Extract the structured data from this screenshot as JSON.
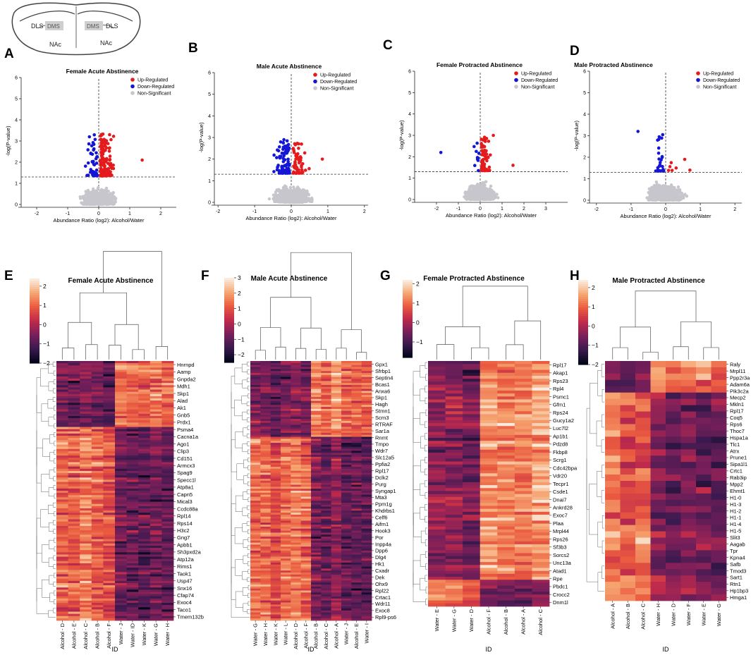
{
  "brain": {
    "labels": [
      "DLS",
      "DMS",
      "DMS",
      "DLS",
      "NAc",
      "NAc"
    ]
  },
  "colors": {
    "up": "#e41a1c",
    "down": "#1515d6",
    "ns": "#c6c6cc",
    "palette": [
      "#03051a",
      "#3c1a4f",
      "#7a1f5a",
      "#c02a4b",
      "#ea5a3f",
      "#f6a571",
      "#faebdd"
    ]
  },
  "volcano_legend": {
    "up": "Up-Regulated",
    "down": "Down-Regulated",
    "ns": "Non-Significant"
  },
  "volcano_ylabel": "-log(P-value)",
  "volcano_xlabel": "Abundance Ratio (log2): Alcohol/Water",
  "heatmap_xlabel": "ID",
  "chart_data": [
    {
      "type": "scatter",
      "panel": "A",
      "title": "Female Acute Abstinence",
      "xlim": [
        -2.5,
        2.5
      ],
      "ylim": [
        0,
        6
      ],
      "xticks": [
        -2,
        -1,
        0,
        1,
        2
      ],
      "yticks": [
        0,
        1,
        2,
        3,
        4,
        5,
        6
      ],
      "xticklabels": [
        "-2",
        "-1",
        "0",
        "1",
        "2"
      ],
      "yticklabels": [
        "0",
        "1",
        "2",
        "3",
        "4",
        "5",
        "6"
      ],
      "threshold": 1.3,
      "n_up": 140,
      "n_down": 45,
      "max_y": 3.4,
      "up_extremes": [
        [
          1.4,
          2.1
        ],
        [
          0.35,
          3.3
        ]
      ],
      "down_extremes": [
        [
          -0.3,
          3.2
        ]
      ]
    },
    {
      "type": "scatter",
      "panel": "B",
      "title": "Male Acute Abstinence",
      "xlim": [
        -2.1,
        2.1
      ],
      "ylim": [
        0,
        6
      ],
      "xticks": [
        -2,
        -1,
        0,
        1,
        2
      ],
      "yticks": [
        0,
        1,
        2,
        3,
        4,
        5,
        6
      ],
      "xticklabels": [
        "-2",
        "-1",
        "0",
        "1",
        "2"
      ],
      "yticklabels": [
        "0",
        "1",
        "2",
        "3",
        "4",
        "5",
        "6"
      ],
      "threshold": 1.3,
      "n_up": 60,
      "n_down": 110,
      "max_y": 2.9,
      "up_extremes": [
        [
          0.85,
          2.0
        ],
        [
          0.2,
          2.5
        ]
      ],
      "down_extremes": [
        [
          -0.2,
          2.9
        ]
      ]
    },
    {
      "type": "scatter",
      "panel": "C",
      "title": "Female Protracted Abstinence",
      "xlim": [
        -3.0,
        4.0
      ],
      "ylim": [
        0,
        6
      ],
      "xticks": [
        -2,
        -1,
        0,
        1,
        2,
        3
      ],
      "yticks": [
        0,
        1,
        2,
        3,
        4,
        5,
        6
      ],
      "xticklabels": [
        "-2",
        "-1",
        "0",
        "1",
        "2",
        "3"
      ],
      "yticklabels": [
        "0",
        "1",
        "2",
        "3",
        "4",
        "5",
        "6"
      ],
      "threshold": 1.3,
      "n_up": 80,
      "n_down": 10,
      "max_y": 3.0,
      "up_extremes": [
        [
          1.5,
          1.6
        ],
        [
          0.6,
          3.0
        ]
      ],
      "down_extremes": [
        [
          -1.8,
          2.2
        ]
      ]
    },
    {
      "type": "scatter",
      "panel": "D",
      "title": "Male Protracted Abstinence",
      "xlim": [
        -2.2,
        2.2
      ],
      "ylim": [
        0,
        6
      ],
      "xticks": [
        -2,
        -1,
        0,
        1,
        2
      ],
      "yticks": [
        0,
        1,
        2,
        3,
        4,
        5,
        6
      ],
      "xticklabels": [
        "-2",
        "-1",
        "0",
        "1",
        "2"
      ],
      "yticklabels": [
        "0",
        "1",
        "2",
        "3",
        "4",
        "5",
        "6"
      ],
      "threshold": 1.3,
      "n_up": 5,
      "n_down": 30,
      "max_y": 3.2,
      "up_extremes": [
        [
          0.55,
          1.9
        ],
        [
          0.7,
          1.4
        ]
      ],
      "down_extremes": [
        [
          -0.8,
          3.2
        ]
      ]
    },
    {
      "type": "heatmap",
      "panel": "E",
      "title": "Female Acute Abstinence",
      "columns": [
        "Alcohol - D",
        "Alcohol - E",
        "Alcohol - C",
        "Alcohol - B",
        "Alcohol - F",
        "Water - J",
        "Water - ID",
        "Water - K",
        "Water - G",
        "Water - H"
      ],
      "n_alcohol": 5,
      "vmin": -2,
      "vmax": 2.4,
      "colorbar_ticks": [
        2,
        1,
        0,
        -1,
        -2
      ],
      "colorbar_labels": [
        "2",
        "1",
        "0",
        "−1",
        "−2"
      ],
      "n_rows": 118,
      "split_row": 30,
      "genes": [
        "Hnrnpd",
        "Aamp",
        "Gnpda2",
        "Mdh1",
        "Skp1",
        "Alad",
        "Ak1",
        "Gnb5",
        "Prdx1",
        "Psma4",
        "Cacna1a",
        "Ago1",
        "Clip3",
        "Cd151",
        "Armcx3",
        "Spag9",
        "Specc1l",
        "Atp8a1",
        "Capn5",
        "Mical3",
        "Ccdc88a",
        "Rpl14",
        "Rps14",
        "H3c2",
        "Gng7",
        "Apbb1",
        "Sh3pxd2a",
        "Atp12a",
        "Rims1",
        "Taok1",
        "Usp47",
        "Snx16",
        "Cfap74",
        "Exoc4",
        "Taco1",
        "Tmem132b"
      ]
    },
    {
      "type": "heatmap",
      "panel": "F",
      "title": "Male Acute Abstinence",
      "columns": [
        "Water - G",
        "Water - H",
        "Water - K",
        "Water - L",
        "Alcohol - D",
        "Alcohol - F",
        "Alcohol - B",
        "Alcohol - C",
        "Alcohol - A",
        "Water - J",
        "Alcohol - E",
        "Water - I"
      ],
      "n_alcohol": 6,
      "vmin": -2.5,
      "vmax": 3,
      "colorbar_ticks": [
        3,
        2,
        1,
        0,
        -1,
        -2
      ],
      "colorbar_labels": [
        "3",
        "2",
        "1",
        "0",
        "−1",
        "−2"
      ],
      "n_rows": 130,
      "split_row": 38,
      "genes": [
        "Gpx1",
        "Sfrbp1",
        "Septin4",
        "Bcas1",
        "Anxa6",
        "Skp1",
        "Hagh",
        "Stmn1",
        "Scrn3",
        "RTRAF",
        "Sar1a",
        "Rnmt",
        "Tmpo",
        "Wdr7",
        "Slc12a5",
        "Ppfia2",
        "Rpl17",
        "Dclk2",
        "Purg",
        "Syngap1",
        "Mta3",
        "Ppm1g",
        "Khdrbs1",
        "Celf6",
        "Aifm1",
        "Hook3",
        "Por",
        "Inpp4a",
        "Dpp6",
        "Dlg4",
        "Hk1",
        "Cxadr",
        "Dek",
        "Ohx9",
        "Rpl22",
        "Crtac1",
        "Wdr11",
        "Exoc8",
        "Rpl9-ps6"
      ]
    },
    {
      "type": "heatmap",
      "panel": "G",
      "title": "Female Protracted Abstinence",
      "columns": [
        "Water - E",
        "Water - G",
        "Water - D",
        "Alcohol - F",
        "Alcohol - B",
        "Alcohol - A",
        "Alcohol - C"
      ],
      "n_alcohol": 4,
      "vmin": -1.8,
      "vmax": 2.2,
      "colorbar_ticks": [
        2,
        1,
        0,
        -1
      ],
      "colorbar_labels": [
        "2",
        "1",
        "0",
        "−1"
      ],
      "n_rows": 83,
      "split_row": 74,
      "genes": [
        "Rpl17",
        "Akap1",
        "Rps23",
        "Rpl4",
        "Psmc1",
        "Gfm1",
        "Rps24",
        "Gucy1a2",
        "Luc7l2",
        "Ap1b1",
        "Pdzd8",
        "Fkbp8",
        "Scrg1",
        "Cdc42bpa",
        "Vdr20",
        "Tecpr1",
        "Csde1",
        "Dnai7",
        "Ankrd28",
        "Exoc7",
        "Plaa",
        "Mrpl44",
        "Rps26",
        "Sf3b3",
        "Sorcs2",
        "Unc13a",
        "Atad1",
        "Rpe",
        "Pbdc1",
        "Crocc2",
        "Dnm1l"
      ]
    },
    {
      "type": "heatmap",
      "panel": "H",
      "title": "Male Protracted Abstinence",
      "columns": [
        "Alcohol - A",
        "Alcohol - B",
        "Alcohol - C",
        "Water - H",
        "Water - D",
        "Water - F",
        "Water - E",
        "Water - G"
      ],
      "n_alcohol": 3,
      "vmin": -2,
      "vmax": 2.4,
      "colorbar_ticks": [
        2,
        1,
        0,
        -1,
        -2
      ],
      "colorbar_labels": [
        "2",
        "1",
        "0",
        "−1",
        "−2"
      ],
      "n_rows": 38,
      "split_row": 5,
      "genes": [
        "Raly",
        "Mrpl11",
        "Ppp2r3a",
        "Adam6a",
        "Pik3c2a",
        "Mecp2",
        "Mkln1",
        "Rpl17",
        "Coq5",
        "Rps6",
        "Thoc7",
        "Hspa1a",
        "Tlc1",
        "Atrx",
        "Prune1",
        "Sipa1l1",
        "Crtc1",
        "Rab3ip",
        "Mpp2",
        "Ehmt1",
        "H1-0",
        "H1-3",
        "H1-2",
        "H1-1",
        "H1-4",
        "H1-5",
        "Slit3",
        "Aagab",
        "Tpr",
        "Kpna4",
        "Safb",
        "Tmod3",
        "Sart1",
        "Rtn1",
        "Hp1bp3",
        "Hmga1"
      ]
    }
  ]
}
